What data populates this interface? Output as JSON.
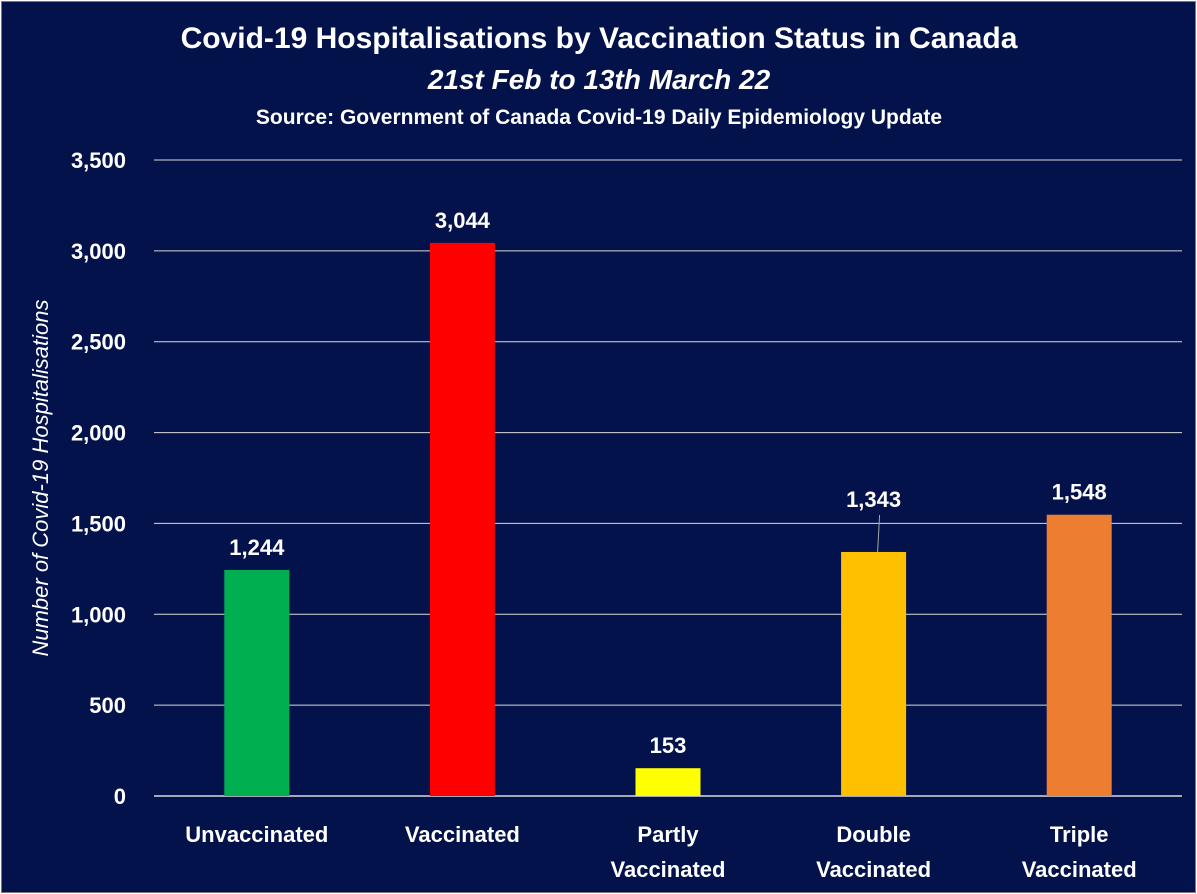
{
  "chart_data": {
    "type": "bar",
    "title": "Covid-19 Hospitalisations by Vaccination Status in Canada",
    "subtitle": "21st Feb to 13th March 22",
    "source": "Source: Government of Canada  Covid-19 Daily Epidemiology Update",
    "ylabel": "Number of Covid-19 Hospitalisations",
    "xlabel": "",
    "ylim": [
      0,
      3500
    ],
    "ytick_step": 500,
    "yticks": [
      "0",
      "500",
      "1,000",
      "1,500",
      "2,000",
      "2,500",
      "3,000",
      "3,500"
    ],
    "grid": true,
    "legend": "none",
    "categories": [
      [
        "Unvaccinated"
      ],
      [
        "Vaccinated"
      ],
      [
        "Partly",
        "Vaccinated"
      ],
      [
        "Double",
        "Vaccinated"
      ],
      [
        "Triple",
        "Vaccinated"
      ]
    ],
    "values": [
      1244,
      3044,
      153,
      1343,
      1548
    ],
    "value_labels": [
      "1,244",
      "3,044",
      "153",
      "1,343",
      "1,548"
    ],
    "colors": [
      "#00b050",
      "#ff0000",
      "#ffff00",
      "#ffc000",
      "#ed7d31"
    ]
  }
}
